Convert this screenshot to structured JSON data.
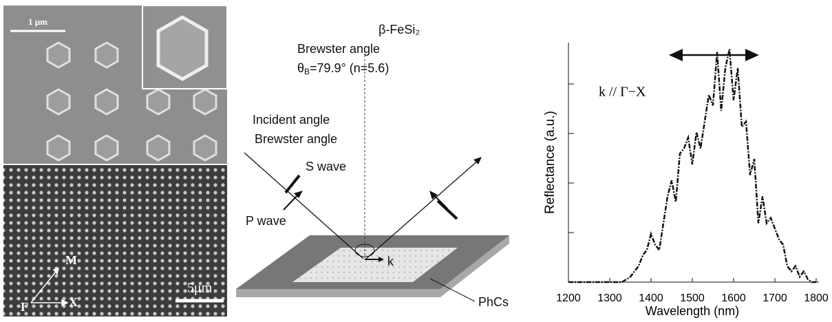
{
  "sem": {
    "scale_top": "1 μm",
    "scale_bottom": "5μm",
    "dir_m": "M",
    "dir_gamma": "Γ",
    "dir_x": "X"
  },
  "diagram": {
    "material": "β-FeSi₂",
    "brewster_title": "Brewster angle",
    "theta": "θ",
    "theta_sub": "B",
    "theta_value": "=79.9°  (n=5.6)",
    "incident_1": "Incident angle",
    "incident_2": "Brewster angle",
    "s_wave": "S wave",
    "p_wave": "P wave",
    "k": "k",
    "phcs": "PhCs"
  },
  "chart_data": {
    "type": "line",
    "annotation": "k // Γ−X",
    "xlabel": "Wavelength (nm)",
    "ylabel": "Reflectance (a.u.)",
    "x": [
      1200,
      1210,
      1220,
      1230,
      1240,
      1250,
      1260,
      1270,
      1280,
      1290,
      1300,
      1310,
      1320,
      1330,
      1340,
      1350,
      1360,
      1370,
      1380,
      1390,
      1400,
      1410,
      1420,
      1430,
      1440,
      1450,
      1460,
      1470,
      1480,
      1490,
      1500,
      1510,
      1520,
      1530,
      1540,
      1550,
      1560,
      1570,
      1580,
      1590,
      1600,
      1610,
      1620,
      1630,
      1640,
      1650,
      1660,
      1670,
      1680,
      1690,
      1700,
      1710,
      1720,
      1730,
      1740,
      1750,
      1760,
      1770,
      1780,
      1790,
      1800
    ],
    "values": [
      0,
      0,
      0,
      0,
      0,
      0,
      0,
      0,
      0,
      0,
      0,
      0,
      0,
      0,
      0.05,
      0.1,
      0.2,
      0.3,
      0.5,
      0.6,
      0.9,
      0.7,
      0.6,
      1.1,
      1.6,
      1.9,
      1.5,
      2.4,
      2.5,
      2.7,
      2.2,
      2.8,
      2.5,
      3.0,
      3.5,
      3.3,
      4.3,
      3.2,
      4.0,
      4.35,
      3.4,
      4.0,
      2.9,
      3.0,
      2.0,
      2.3,
      1.1,
      1.6,
      1.1,
      1.2,
      1.0,
      0.8,
      0.7,
      0.3,
      0.2,
      0.3,
      0.1,
      0.2,
      0.05,
      0,
      0
    ],
    "color": "#111111",
    "xlim": [
      1200,
      1800
    ],
    "xticks": [
      1200,
      1300,
      1400,
      1500,
      1600,
      1700,
      1800
    ],
    "ylim": [
      0,
      4.5
    ]
  }
}
